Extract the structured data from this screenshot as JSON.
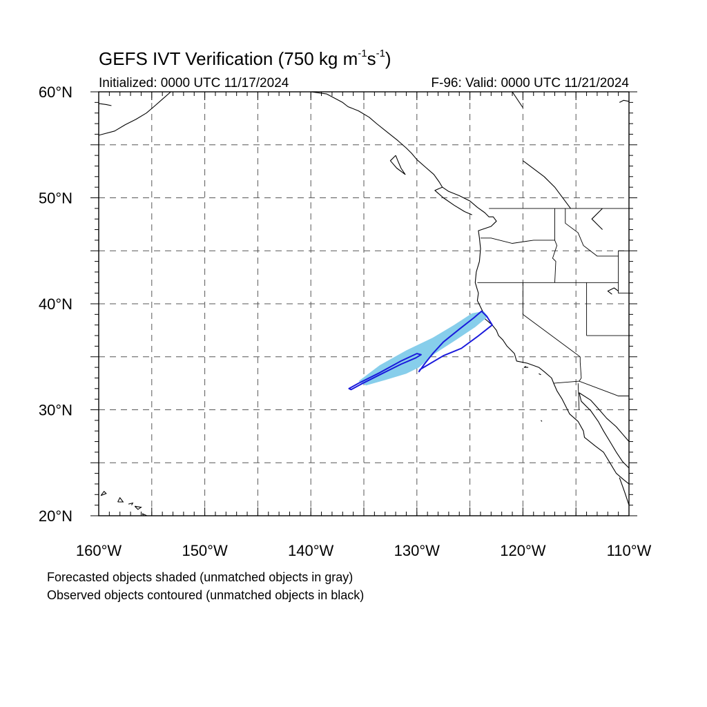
{
  "title": {
    "main": "GEFS IVT Verification (750 kg m",
    "exp1": "-1",
    "mid": "s",
    "exp2": "-1",
    "end": ")"
  },
  "initialized": "Initialized: 0000 UTC 11/17/2024",
  "valid": "F-96: Valid: 0000 UTC 11/21/2024",
  "notes": [
    "Forecasted objects shaded (unmatched objects in gray)",
    "Observed objects contoured (unmatched objects in black)"
  ],
  "map": {
    "lon_range": [
      -160,
      -110
    ],
    "lat_range": [
      20,
      60
    ],
    "x_ticks": [
      {
        "lon": -160,
        "label": "160°W"
      },
      {
        "lon": -150,
        "label": "150°W"
      },
      {
        "lon": -140,
        "label": "140°W"
      },
      {
        "lon": -130,
        "label": "130°W"
      },
      {
        "lon": -120,
        "label": "120°W"
      },
      {
        "lon": -110,
        "label": "110°W"
      }
    ],
    "y_ticks": [
      {
        "lat": 20,
        "label": "20°N"
      },
      {
        "lat": 30,
        "label": "30°N"
      },
      {
        "lat": 40,
        "label": "40°N"
      },
      {
        "lat": 50,
        "label": "50°N"
      },
      {
        "lat": 60,
        "label": "60°N"
      }
    ],
    "grid_interval_deg": 5,
    "gridline_style": "dashed gray",
    "colors": {
      "forecast_fill": "#87ceeb",
      "observed_contour": "#1a1adc",
      "coast": "#000000",
      "grid": "#555555"
    },
    "forecast_object": [
      [
        -135.5,
        32.7
      ],
      [
        -133.5,
        34.2
      ],
      [
        -131.0,
        35.6
      ],
      [
        -128.5,
        36.8
      ],
      [
        -126.5,
        38.0
      ],
      [
        -124.8,
        39.1
      ],
      [
        -123.7,
        39.3
      ],
      [
        -123.3,
        38.8
      ],
      [
        -124.5,
        37.8
      ],
      [
        -126.3,
        36.6
      ],
      [
        -128.3,
        35.3
      ],
      [
        -129.8,
        34.0
      ],
      [
        -131.0,
        33.4
      ],
      [
        -133.0,
        32.8
      ],
      [
        -134.8,
        32.3
      ]
    ],
    "observed_objects": [
      [
        [
          -136.4,
          32.0
        ],
        [
          -135.5,
          32.5
        ],
        [
          -133.5,
          33.5
        ],
        [
          -131.5,
          34.6
        ],
        [
          -130.0,
          35.3
        ],
        [
          -129.6,
          35.2
        ],
        [
          -130.1,
          34.9
        ],
        [
          -131.5,
          34.3
        ],
        [
          -133.5,
          33.3
        ],
        [
          -135.3,
          32.4
        ],
        [
          -136.2,
          31.9
        ]
      ],
      [
        [
          -129.8,
          33.6
        ],
        [
          -129.3,
          34.3
        ],
        [
          -128.5,
          35.3
        ],
        [
          -127.5,
          36.4
        ],
        [
          -126.0,
          37.6
        ],
        [
          -124.6,
          38.7
        ],
        [
          -123.9,
          39.3
        ],
        [
          -123.4,
          38.8
        ],
        [
          -122.9,
          38.0
        ],
        [
          -124.3,
          36.9
        ],
        [
          -125.8,
          35.8
        ],
        [
          -127.5,
          35.1
        ],
        [
          -129.2,
          34.1
        ],
        [
          -129.7,
          33.8
        ]
      ]
    ],
    "coastlines": [
      [
        [
          -160,
          55.9
        ],
        [
          -158.5,
          56.3
        ],
        [
          -157.5,
          56.9
        ],
        [
          -156.5,
          57.4
        ],
        [
          -155.5,
          58.0
        ],
        [
          -154.8,
          58.6
        ],
        [
          -154.0,
          59.3
        ],
        [
          -153.2,
          60.0
        ]
      ],
      [
        [
          -160,
          58.9
        ],
        [
          -159.3,
          58.8
        ],
        [
          -158.8,
          58.7
        ]
      ],
      [
        [
          -140.0,
          60.0
        ],
        [
          -138.5,
          59.8
        ],
        [
          -137.0,
          59.0
        ],
        [
          -136.5,
          58.6
        ],
        [
          -135.5,
          58.2
        ],
        [
          -134.5,
          57.6
        ],
        [
          -133.8,
          57.0
        ],
        [
          -132.8,
          56.2
        ],
        [
          -131.8,
          55.4
        ],
        [
          -131.0,
          54.7
        ],
        [
          -130.5,
          54.2
        ],
        [
          -130.0,
          53.6
        ],
        [
          -129.2,
          52.9
        ],
        [
          -128.4,
          52.2
        ],
        [
          -127.9,
          51.5
        ],
        [
          -127.6,
          51.0
        ],
        [
          -127.0,
          50.6
        ],
        [
          -126.0,
          50.2
        ],
        [
          -125.0,
          49.7
        ],
        [
          -124.3,
          49.1
        ],
        [
          -123.6,
          48.6
        ],
        [
          -123.2,
          48.2
        ],
        [
          -122.8,
          48.2
        ],
        [
          -122.5,
          47.8
        ],
        [
          -123.0,
          47.3
        ],
        [
          -124.2,
          46.9
        ],
        [
          -124.1,
          46.2
        ],
        [
          -124.0,
          45.2
        ],
        [
          -124.1,
          44.0
        ],
        [
          -124.4,
          43.0
        ],
        [
          -124.5,
          42.0
        ],
        [
          -124.2,
          41.0
        ],
        [
          -124.3,
          40.3
        ],
        [
          -123.8,
          39.3
        ],
        [
          -123.6,
          38.6
        ],
        [
          -122.9,
          38.0
        ],
        [
          -122.5,
          37.5
        ],
        [
          -122.3,
          37.0
        ],
        [
          -121.9,
          36.6
        ],
        [
          -121.5,
          36.0
        ],
        [
          -120.8,
          35.3
        ],
        [
          -120.6,
          34.6
        ],
        [
          -119.6,
          34.4
        ],
        [
          -118.5,
          34.0
        ],
        [
          -118.0,
          33.6
        ],
        [
          -117.3,
          33.0
        ],
        [
          -117.1,
          32.5
        ],
        [
          -116.8,
          31.8
        ],
        [
          -116.3,
          31.0
        ],
        [
          -115.9,
          30.2
        ],
        [
          -115.6,
          29.6
        ],
        [
          -114.8,
          28.9
        ],
        [
          -114.3,
          28.0
        ],
        [
          -114.2,
          27.4
        ],
        [
          -113.2,
          26.6
        ],
        [
          -112.4,
          26.0
        ],
        [
          -111.8,
          25.0
        ],
        [
          -111.2,
          24.0
        ],
        [
          -110.5,
          23.4
        ],
        [
          -110.0,
          23.0
        ]
      ],
      [
        [
          -110.0,
          27.0
        ],
        [
          -110.6,
          27.7
        ],
        [
          -111.2,
          28.4
        ],
        [
          -112.1,
          29.2
        ],
        [
          -112.8,
          30.0
        ],
        [
          -113.6,
          30.9
        ],
        [
          -114.7,
          31.6
        ],
        [
          -114.5,
          30.8
        ],
        [
          -113.6,
          29.9
        ],
        [
          -112.9,
          28.9
        ],
        [
          -112.4,
          28.0
        ],
        [
          -111.8,
          27.0
        ],
        [
          -111.2,
          26.0
        ],
        [
          -110.6,
          25.1
        ],
        [
          -110.0,
          24.5
        ]
      ],
      [
        [
          -110.0,
          21.0
        ],
        [
          -110.4,
          22.2
        ],
        [
          -110.9,
          23.6
        ]
      ],
      [
        [
          -124.8,
          48.4
        ],
        [
          -125.5,
          48.7
        ],
        [
          -126.5,
          49.3
        ],
        [
          -127.5,
          50.0
        ],
        [
          -128.3,
          50.7
        ],
        [
          -127.6,
          51.0
        ]
      ],
      [
        [
          -132.0,
          54.0
        ],
        [
          -132.5,
          53.5
        ],
        [
          -131.9,
          52.8
        ],
        [
          -131.1,
          52.2
        ],
        [
          -131.5,
          52.8
        ],
        [
          -131.8,
          53.5
        ],
        [
          -132.0,
          54.0
        ]
      ],
      [
        [
          -121.0,
          60.0
        ],
        [
          -120.0,
          58.5
        ]
      ],
      [
        [
          -120.0,
          53.5
        ],
        [
          -118.0,
          52.0
        ],
        [
          -117.0,
          51.0
        ],
        [
          -115.5,
          49.0
        ]
      ],
      [
        [
          -112.5,
          49.0
        ],
        [
          -113.5,
          48.0
        ],
        [
          -113.0,
          47.5
        ],
        [
          -112.5,
          47.0
        ]
      ],
      [
        [
          -111.0,
          41.2
        ],
        [
          -111.4,
          41.5
        ],
        [
          -112.0,
          41.2
        ],
        [
          -111.6,
          40.9
        ]
      ],
      [
        [
          -110.0,
          59.1
        ],
        [
          -110.5,
          59.2
        ],
        [
          -110.9,
          59.0
        ]
      ]
    ],
    "islands": [
      [
        [
          -159.8,
          21.9
        ],
        [
          -159.3,
          22.1
        ],
        [
          -159.5,
          22.3
        ],
        [
          -159.8,
          21.9
        ]
      ],
      [
        [
          -158.2,
          21.3
        ],
        [
          -157.7,
          21.3
        ],
        [
          -158.0,
          21.7
        ],
        [
          -158.2,
          21.3
        ]
      ],
      [
        [
          -157.2,
          21.1
        ],
        [
          -156.8,
          21.2
        ],
        [
          -156.9,
          21.0
        ]
      ],
      [
        [
          -156.6,
          20.9
        ],
        [
          -156.0,
          20.8
        ],
        [
          -156.3,
          20.6
        ],
        [
          -156.6,
          20.9
        ]
      ],
      [
        [
          -155.9,
          20.2
        ],
        [
          -155.0,
          19.8
        ],
        [
          -155.5,
          19.5
        ],
        [
          -155.9,
          20.2
        ]
      ],
      [
        [
          -119.5,
          34.0
        ],
        [
          -119.9,
          34.0
        ],
        [
          -119.7,
          34.1
        ]
      ],
      [
        [
          -118.5,
          33.4
        ],
        [
          -118.3,
          33.3
        ]
      ],
      [
        [
          -118.3,
          29.0
        ],
        [
          -118.2,
          28.9
        ]
      ]
    ],
    "borders": [
      [
        [
          -123.2,
          49.0
        ],
        [
          -110.0,
          49.0
        ]
      ],
      [
        [
          -117.0,
          49.0
        ],
        [
          -117.0,
          46.0
        ],
        [
          -116.8,
          45.5
        ],
        [
          -117.2,
          44.3
        ],
        [
          -116.9,
          44.0
        ],
        [
          -117.0,
          42.0
        ]
      ],
      [
        [
          -124.0,
          46.2
        ],
        [
          -123.0,
          46.2
        ],
        [
          -121.0,
          45.7
        ],
        [
          -119.0,
          46.0
        ],
        [
          -117.0,
          46.0
        ]
      ],
      [
        [
          -124.3,
          42.0
        ],
        [
          -111.0,
          42.0
        ]
      ],
      [
        [
          -120.0,
          42.0
        ],
        [
          -120.0,
          39.0
        ],
        [
          -114.6,
          35.0
        ]
      ],
      [
        [
          -114.6,
          35.0
        ],
        [
          -114.6,
          34.5
        ],
        [
          -114.5,
          33.0
        ],
        [
          -114.7,
          32.7
        ]
      ],
      [
        [
          -117.1,
          32.5
        ],
        [
          -114.7,
          32.7
        ],
        [
          -111.0,
          31.3
        ],
        [
          -110.0,
          31.3
        ]
      ],
      [
        [
          -114.0,
          42.0
        ],
        [
          -114.0,
          37.0
        ]
      ],
      [
        [
          -114.0,
          37.0
        ],
        [
          -110.0,
          37.0
        ]
      ],
      [
        [
          -111.0,
          45.0
        ],
        [
          -111.0,
          41.0
        ],
        [
          -110.0,
          41.0
        ]
      ],
      [
        [
          -111.0,
          45.0
        ],
        [
          -110.0,
          45.0
        ]
      ],
      [
        [
          -116.0,
          49.0
        ],
        [
          -116.0,
          47.6
        ],
        [
          -114.8,
          46.7
        ],
        [
          -114.3,
          45.5
        ],
        [
          -113.0,
          44.5
        ],
        [
          -111.0,
          44.5
        ]
      ],
      [
        [
          -114.8,
          32.5
        ],
        [
          -114.7,
          30.0
        ]
      ]
    ]
  }
}
